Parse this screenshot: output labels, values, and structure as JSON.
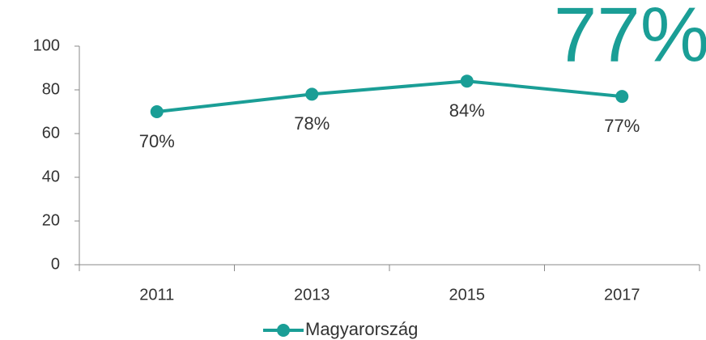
{
  "chart_data": {
    "type": "line",
    "annotation": "77%",
    "categories": [
      "2011",
      "2013",
      "2015",
      "2017"
    ],
    "series": [
      {
        "name": "Magyarország",
        "color": "#1a9e96",
        "values": [
          70,
          78,
          84,
          77
        ],
        "value_labels": [
          "70%",
          "78%",
          "84%",
          "77%"
        ]
      }
    ],
    "ylim": [
      0,
      100
    ],
    "yticks": [
      0,
      20,
      40,
      60,
      80,
      100
    ],
    "grid": false,
    "legend": "bottom"
  }
}
